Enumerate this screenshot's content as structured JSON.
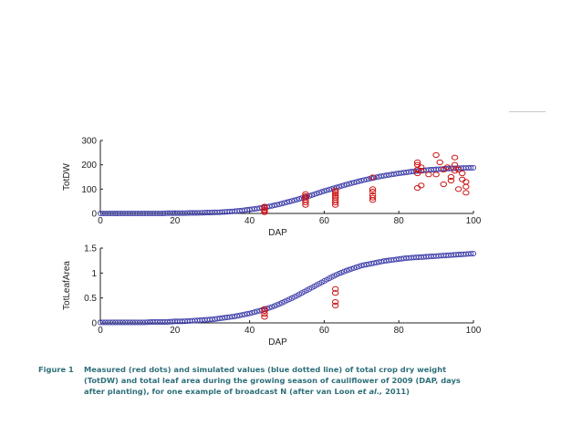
{
  "colors": {
    "measured": "#cc1111",
    "simulated": "#3a3aa8",
    "caption": "#2e6f7a",
    "axis": "#222222"
  },
  "caption": {
    "label": "Figure 1",
    "line1": "Measured (red dots) and simulated values (blue dotted line) of total crop dry weight",
    "line2": "(TotDW) and total leaf area during the growing season of cauliflower of 2009 (DAP, days",
    "line3_pre": "after planting), for one example of broadcast N (after van Loon ",
    "line3_em": "et al.,",
    "line3_post": " 2011)"
  },
  "chart_data": [
    {
      "type": "scatter",
      "xlabel": "DAP",
      "ylabel": "TotDW",
      "xlim": [
        0,
        100
      ],
      "ylim": [
        0,
        300
      ],
      "xticks": [
        "0",
        "20",
        "40",
        "60",
        "80",
        "100"
      ],
      "yticks": [
        "0",
        "100",
        "200",
        "300"
      ],
      "series": [
        {
          "style": "simulated",
          "x": [
            0,
            2,
            4,
            6,
            8,
            10,
            12,
            14,
            16,
            18,
            20,
            22,
            24,
            26,
            28,
            30,
            32,
            34,
            36,
            38,
            40,
            42,
            44,
            46,
            48,
            50,
            52,
            54,
            56,
            58,
            60,
            62,
            64,
            66,
            68,
            70,
            72,
            74,
            76,
            78,
            80,
            82,
            84,
            86,
            88,
            90,
            92,
            94,
            96,
            98,
            100
          ],
          "y": [
            0,
            0,
            0,
            0,
            0,
            0,
            0,
            0,
            0,
            1,
            1,
            1,
            2,
            2,
            3,
            4,
            5,
            7,
            9,
            12,
            16,
            20,
            25,
            31,
            38,
            46,
            54,
            63,
            72,
            82,
            92,
            101,
            110,
            119,
            127,
            135,
            142,
            149,
            155,
            160,
            165,
            169,
            173,
            176,
            179,
            181,
            183,
            185,
            186,
            187,
            188
          ]
        },
        {
          "style": "measured",
          "x": [
            44,
            44,
            44,
            44,
            44,
            55,
            55,
            55,
            55,
            55,
            55,
            63,
            63,
            63,
            63,
            63,
            63,
            63,
            63,
            73,
            73,
            73,
            73,
            73,
            73,
            85,
            85,
            85,
            85,
            85,
            86,
            86,
            86,
            88,
            90,
            90,
            91,
            92,
            92,
            93,
            94,
            94,
            95,
            95,
            95,
            96,
            96,
            97,
            97,
            98,
            98,
            98
          ],
          "y": [
            5,
            10,
            15,
            22,
            28,
            35,
            45,
            55,
            65,
            72,
            80,
            35,
            45,
            55,
            65,
            72,
            80,
            88,
            95,
            55,
            65,
            75,
            90,
            100,
            148,
            105,
            165,
            180,
            200,
            210,
            175,
            190,
            115,
            160,
            160,
            240,
            210,
            120,
            180,
            190,
            135,
            150,
            200,
            230,
            175,
            100,
            180,
            140,
            165,
            85,
            110,
            130
          ]
        }
      ]
    },
    {
      "type": "scatter",
      "xlabel": "DAP",
      "ylabel": "TotLeafArea",
      "xlim": [
        0,
        100
      ],
      "ylim": [
        0,
        1.5
      ],
      "xticks": [
        "0",
        "20",
        "40",
        "60",
        "80",
        "100"
      ],
      "yticks": [
        "0",
        "0.5",
        "1",
        "1.5"
      ],
      "series": [
        {
          "style": "simulated",
          "x": [
            0,
            2,
            4,
            6,
            8,
            10,
            12,
            14,
            16,
            18,
            20,
            22,
            24,
            26,
            28,
            30,
            32,
            34,
            36,
            38,
            40,
            42,
            44,
            46,
            48,
            50,
            52,
            54,
            56,
            58,
            60,
            62,
            64,
            66,
            68,
            70,
            72,
            74,
            76,
            78,
            80,
            82,
            84,
            86,
            88,
            90,
            92,
            94,
            96,
            98,
            100
          ],
          "y": [
            0.01,
            0.01,
            0.01,
            0.01,
            0.01,
            0.01,
            0.01,
            0.02,
            0.02,
            0.02,
            0.03,
            0.03,
            0.04,
            0.05,
            0.06,
            0.07,
            0.09,
            0.11,
            0.13,
            0.16,
            0.19,
            0.23,
            0.27,
            0.32,
            0.38,
            0.45,
            0.52,
            0.6,
            0.68,
            0.76,
            0.84,
            0.92,
            0.99,
            1.05,
            1.1,
            1.15,
            1.18,
            1.21,
            1.24,
            1.26,
            1.28,
            1.3,
            1.31,
            1.32,
            1.33,
            1.34,
            1.35,
            1.36,
            1.37,
            1.38,
            1.39
          ]
        },
        {
          "style": "measured",
          "x": [
            44,
            44,
            44,
            44,
            63,
            63,
            63,
            63
          ],
          "y": [
            0.12,
            0.18,
            0.24,
            0.28,
            0.35,
            0.42,
            0.6,
            0.68
          ]
        }
      ]
    }
  ]
}
